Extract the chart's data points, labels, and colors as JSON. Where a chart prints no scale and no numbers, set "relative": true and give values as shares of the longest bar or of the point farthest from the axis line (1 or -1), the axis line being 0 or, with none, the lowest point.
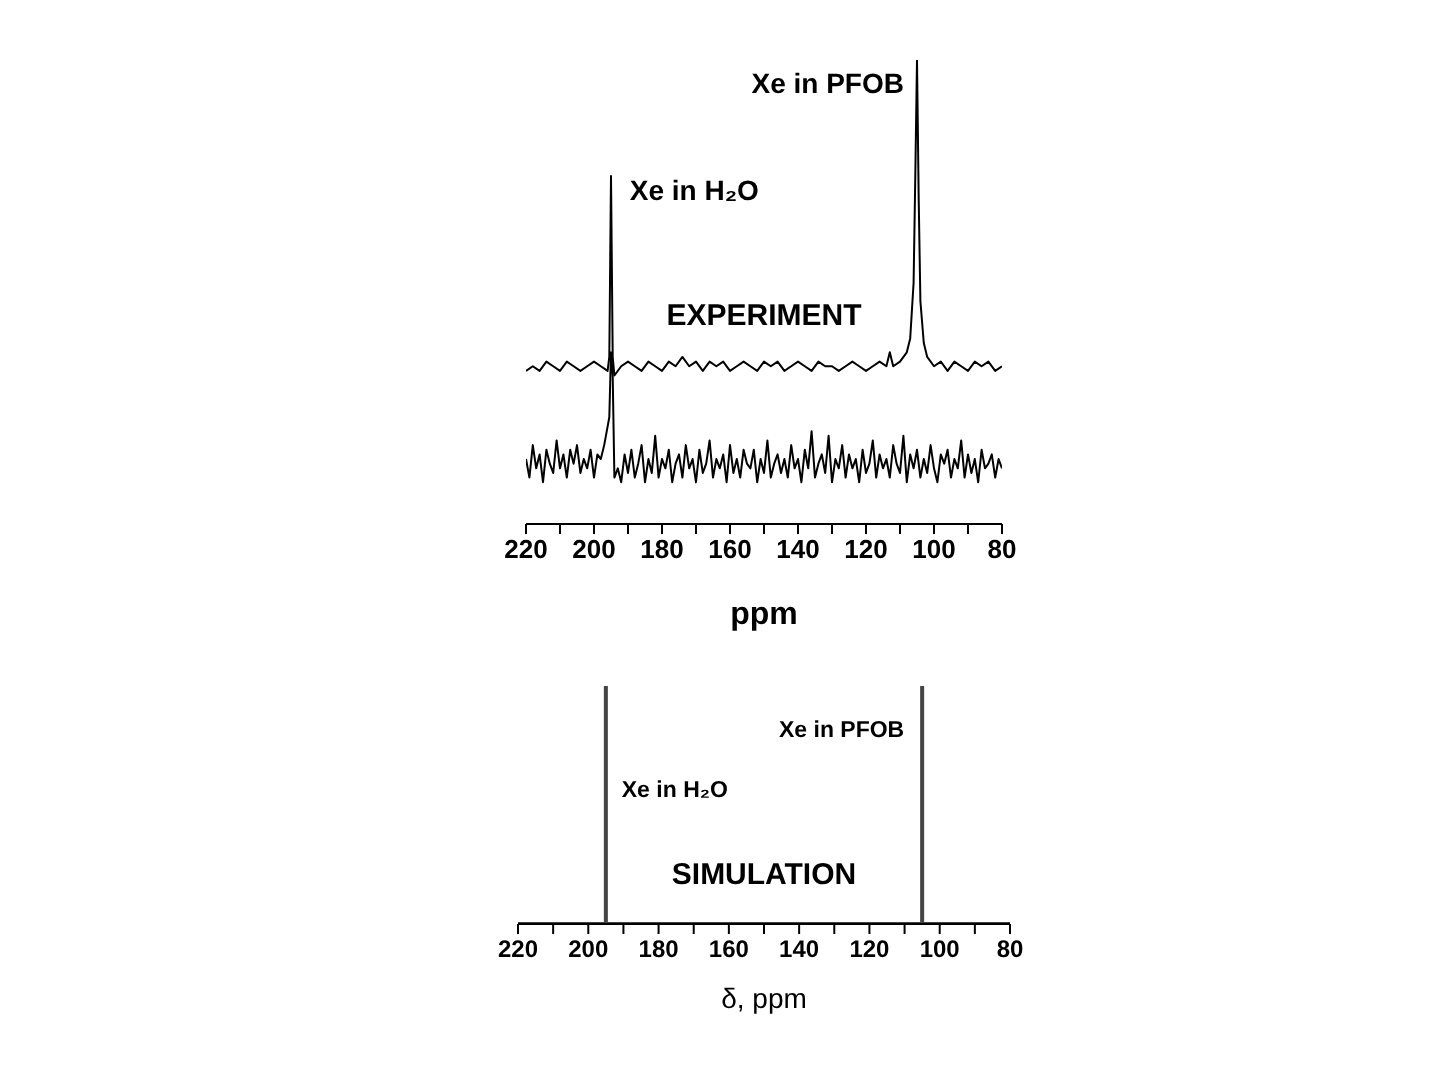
{
  "chart_data": [
    {
      "type": "line",
      "relative": true,
      "xlabel": "ppm",
      "xlim": [
        220,
        80
      ],
      "xticks": [
        220,
        {
          "value": 210,
          "label": null
        },
        200,
        {
          "value": 190,
          "label": null
        },
        180,
        {
          "value": 170,
          "label": null
        },
        160,
        {
          "value": 150,
          "label": null
        },
        140,
        {
          "value": 130,
          "label": null
        },
        120,
        {
          "value": 110,
          "label": null
        },
        100,
        {
          "value": 90,
          "label": null
        },
        80
      ],
      "annotations": [
        "Xe in PFOB",
        "Xe in H₂O",
        "EXPERIMENT"
      ],
      "series": [
        {
          "color": "#000000",
          "x": [
            220,
            218,
            216,
            214,
            212,
            210,
            208,
            206,
            204,
            202,
            200,
            198,
            196,
            195.5,
            195,
            194.5,
            194,
            192,
            190,
            188,
            186,
            184,
            182,
            180,
            178,
            176,
            174,
            172,
            170,
            168,
            166,
            164,
            162,
            160,
            158,
            156,
            154,
            152,
            150,
            148,
            146,
            144,
            142,
            140,
            138,
            136,
            134,
            132,
            130,
            128,
            126,
            124,
            122,
            120,
            118,
            116,
            114,
            113,
            112,
            110,
            108,
            107,
            106,
            105.5,
            105,
            104.5,
            104,
            103,
            102,
            100,
            98,
            96,
            94,
            92,
            90,
            88,
            86,
            84,
            82,
            80
          ],
          "values": [
            0.33,
            0.34,
            0.33,
            0.35,
            0.34,
            0.33,
            0.35,
            0.34,
            0.33,
            0.34,
            0.35,
            0.34,
            0.33,
            0.36,
            0.75,
            0.36,
            0.32,
            0.34,
            0.35,
            0.34,
            0.33,
            0.35,
            0.34,
            0.33,
            0.35,
            0.34,
            0.36,
            0.34,
            0.35,
            0.33,
            0.35,
            0.34,
            0.35,
            0.33,
            0.34,
            0.35,
            0.34,
            0.33,
            0.35,
            0.34,
            0.35,
            0.33,
            0.34,
            0.35,
            0.34,
            0.33,
            0.35,
            0.34,
            0.34,
            0.33,
            0.34,
            0.35,
            0.34,
            0.33,
            0.34,
            0.35,
            0.34,
            0.37,
            0.34,
            0.35,
            0.37,
            0.4,
            0.52,
            0.75,
            1,
            0.7,
            0.48,
            0.39,
            0.36,
            0.34,
            0.35,
            0.33,
            0.35,
            0.34,
            0.33,
            0.35,
            0.34,
            0.35,
            0.33,
            0.34
          ]
        },
        {
          "color": "#000000",
          "x": [
            220,
            219,
            218,
            217,
            216,
            215,
            214,
            213,
            212,
            211,
            210,
            209,
            208,
            207,
            206,
            205,
            204,
            203,
            202,
            201,
            200,
            199,
            198,
            197,
            196,
            195.5,
            195,
            194.5,
            194,
            193,
            192,
            191,
            190,
            189,
            188,
            187,
            186,
            185,
            184,
            183,
            182,
            181,
            180,
            179,
            178,
            177,
            176,
            175,
            174,
            173,
            172,
            171,
            170,
            169,
            168,
            167,
            166,
            165,
            164,
            163,
            162,
            161,
            160,
            159,
            158,
            157,
            156,
            155,
            154,
            153,
            152,
            151,
            150,
            149,
            148,
            147,
            146,
            145,
            144,
            143,
            142,
            141,
            140,
            139,
            138,
            137,
            136,
            135,
            134,
            133,
            132,
            131,
            130,
            129,
            128,
            127,
            126,
            125,
            124,
            123,
            122,
            121,
            120,
            119,
            118,
            117,
            116,
            115,
            114,
            113,
            112,
            111,
            110,
            109,
            108,
            107,
            106,
            105,
            104,
            103,
            102,
            101,
            100,
            99,
            98,
            97,
            96,
            95,
            94,
            93,
            92,
            91,
            90,
            89,
            88,
            87,
            86,
            85,
            84,
            83,
            82,
            81,
            80
          ],
          "values": [
            0.14,
            0.1,
            0.17,
            0.12,
            0.15,
            0.09,
            0.16,
            0.13,
            0.11,
            0.18,
            0.12,
            0.15,
            0.1,
            0.16,
            0.13,
            0.17,
            0.11,
            0.14,
            0.12,
            0.16,
            0.1,
            0.15,
            0.14,
            0.17,
            0.21,
            0.23,
            0.37,
            0.32,
            0.1,
            0.12,
            0.09,
            0.15,
            0.11,
            0.16,
            0.1,
            0.13,
            0.17,
            0.09,
            0.14,
            0.11,
            0.19,
            0.1,
            0.14,
            0.12,
            0.16,
            0.09,
            0.13,
            0.15,
            0.1,
            0.17,
            0.12,
            0.14,
            0.09,
            0.16,
            0.11,
            0.13,
            0.18,
            0.1,
            0.14,
            0.12,
            0.15,
            0.09,
            0.17,
            0.11,
            0.14,
            0.1,
            0.16,
            0.13,
            0.12,
            0.16,
            0.09,
            0.14,
            0.11,
            0.18,
            0.1,
            0.13,
            0.15,
            0.11,
            0.14,
            0.1,
            0.17,
            0.12,
            0.14,
            0.09,
            0.16,
            0.12,
            0.2,
            0.1,
            0.13,
            0.15,
            0.11,
            0.19,
            0.09,
            0.14,
            0.12,
            0.17,
            0.1,
            0.15,
            0.12,
            0.14,
            0.09,
            0.16,
            0.11,
            0.13,
            0.18,
            0.1,
            0.15,
            0.12,
            0.14,
            0.1,
            0.17,
            0.13,
            0.11,
            0.19,
            0.09,
            0.15,
            0.12,
            0.16,
            0.1,
            0.14,
            0.11,
            0.17,
            0.12,
            0.09,
            0.15,
            0.13,
            0.16,
            0.1,
            0.14,
            0.12,
            0.18,
            0.1,
            0.15,
            0.11,
            0.14,
            0.09,
            0.16,
            0.12,
            0.13,
            0.15,
            0.1,
            0.14,
            0.12
          ]
        }
      ]
    },
    {
      "type": "line",
      "relative": true,
      "xlabel": "δ, ppm",
      "xlim": [
        220,
        80
      ],
      "xticks": [
        220,
        {
          "value": 210,
          "label": null
        },
        200,
        {
          "value": 190,
          "label": null
        },
        180,
        {
          "value": 170,
          "label": null
        },
        160,
        {
          "value": 150,
          "label": null
        },
        140,
        {
          "value": 130,
          "label": null
        },
        120,
        {
          "value": 110,
          "label": null
        },
        100,
        {
          "value": 90,
          "label": null
        },
        80
      ],
      "annotations": [
        "Xe in PFOB",
        "Xe in H₂O",
        "SIMULATION"
      ],
      "series": [
        {
          "color": "#444444",
          "x": [
            220,
            195,
            195,
            195,
            105,
            105,
            105,
            80
          ],
          "values": [
            0,
            0,
            1,
            0,
            0,
            1,
            0,
            0
          ]
        }
      ]
    }
  ]
}
